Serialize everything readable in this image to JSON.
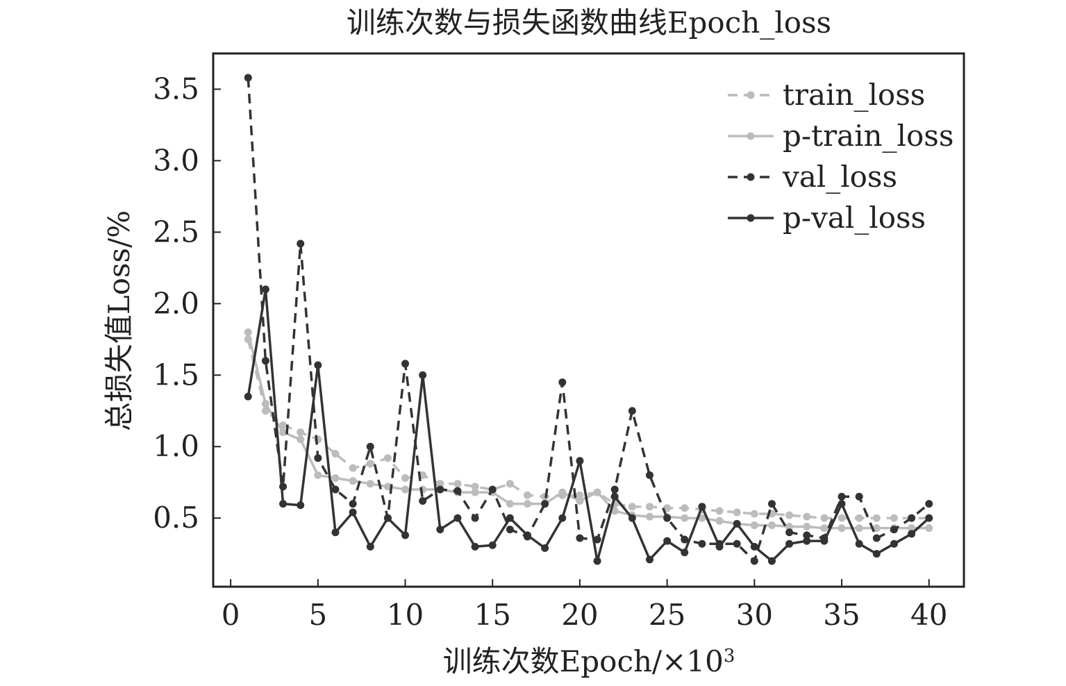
{
  "chart_data": {
    "type": "line",
    "title": "训练次数与损失函数曲线Epoch_loss",
    "xlabel": "训练次数Epoch/×10",
    "xlabel_superscript": "3",
    "ylabel": "总损失值Loss/%",
    "xlim": [
      -1,
      42
    ],
    "ylim": [
      0.02,
      3.75
    ],
    "xticks": [
      0,
      5,
      10,
      15,
      20,
      25,
      30,
      35,
      40
    ],
    "xtick_labels": [
      "0",
      "5",
      "10",
      "15",
      "20",
      "25",
      "30",
      "35",
      "40"
    ],
    "yticks": [
      0.5,
      1.0,
      1.5,
      2.0,
      2.5,
      3.0,
      3.5
    ],
    "ytick_labels": [
      "0.5",
      "1.0",
      "1.5",
      "2.0",
      "2.5",
      "3.0",
      "3.5"
    ],
    "grid": false,
    "legend_position": "top-right",
    "x": [
      1,
      2,
      3,
      4,
      5,
      6,
      7,
      8,
      9,
      10,
      11,
      12,
      13,
      14,
      15,
      16,
      17,
      18,
      19,
      20,
      21,
      22,
      23,
      24,
      25,
      26,
      27,
      28,
      29,
      30,
      31,
      32,
      33,
      34,
      35,
      36,
      37,
      38,
      39,
      40
    ],
    "series": [
      {
        "name": "train_loss",
        "color": "#bcbcbc",
        "dash": "dashed",
        "values": [
          1.75,
          1.25,
          1.15,
          1.1,
          1.05,
          0.95,
          0.85,
          0.88,
          0.92,
          0.78,
          0.8,
          0.74,
          0.74,
          0.72,
          0.7,
          0.74,
          0.66,
          0.65,
          0.66,
          0.66,
          0.68,
          0.6,
          0.58,
          0.58,
          0.57,
          0.57,
          0.56,
          0.55,
          0.54,
          0.53,
          0.53,
          0.52,
          0.51,
          0.5,
          0.5,
          0.5,
          0.5,
          0.5,
          0.5,
          0.5
        ]
      },
      {
        "name": "p-train_loss",
        "color": "#bcbcbc",
        "dash": "solid",
        "values": [
          1.8,
          1.3,
          1.1,
          1.05,
          0.8,
          0.78,
          0.76,
          0.74,
          0.72,
          0.7,
          0.7,
          0.7,
          0.68,
          0.68,
          0.68,
          0.6,
          0.6,
          0.6,
          0.68,
          0.62,
          0.68,
          0.55,
          0.52,
          0.51,
          0.51,
          0.5,
          0.5,
          0.48,
          0.46,
          0.45,
          0.45,
          0.44,
          0.44,
          0.43,
          0.43,
          0.43,
          0.43,
          0.43,
          0.43,
          0.43
        ]
      },
      {
        "name": "val_loss",
        "color": "#333333",
        "dash": "dashed",
        "values": [
          3.58,
          1.6,
          0.72,
          2.42,
          0.92,
          0.7,
          0.6,
          1.0,
          0.5,
          1.58,
          0.62,
          0.7,
          0.69,
          0.5,
          0.7,
          0.42,
          0.37,
          0.6,
          1.45,
          0.36,
          0.35,
          0.7,
          1.25,
          0.8,
          0.5,
          0.35,
          0.32,
          0.32,
          0.32,
          0.2,
          0.6,
          0.4,
          0.38,
          0.36,
          0.65,
          0.65,
          0.36,
          0.42,
          0.5,
          0.6
        ]
      },
      {
        "name": "p-val_loss",
        "color": "#333333",
        "dash": "solid",
        "values": [
          1.35,
          2.1,
          0.6,
          0.59,
          1.57,
          0.4,
          0.54,
          0.3,
          0.5,
          0.38,
          1.5,
          0.42,
          0.5,
          0.3,
          0.31,
          0.5,
          0.38,
          0.29,
          0.5,
          0.9,
          0.2,
          0.65,
          0.5,
          0.21,
          0.34,
          0.26,
          0.58,
          0.3,
          0.46,
          0.3,
          0.2,
          0.32,
          0.34,
          0.34,
          0.6,
          0.32,
          0.25,
          0.32,
          0.39,
          0.5
        ]
      }
    ]
  }
}
